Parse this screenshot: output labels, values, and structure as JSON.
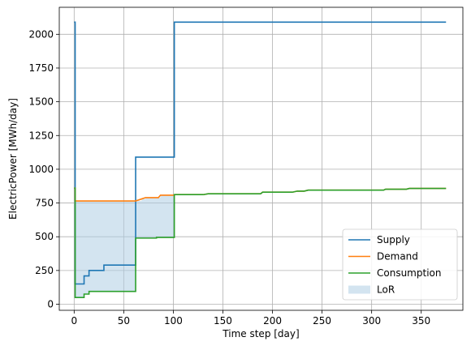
{
  "chart_data": {
    "type": "line",
    "xlabel": "Time step [day]",
    "ylabel": "ElectricPower [MWh/day]",
    "xlim": [
      -15,
      392
    ],
    "ylim": [
      -45,
      2200
    ],
    "xticks": [
      0,
      50,
      100,
      150,
      200,
      250,
      300,
      350
    ],
    "yticks": [
      0,
      250,
      500,
      750,
      1000,
      1250,
      1500,
      1750,
      2000
    ],
    "grid": true,
    "legend_position": "lower-right",
    "series": [
      {
        "name": "Supply",
        "color": "#1f77b4",
        "style": "step",
        "points": [
          [
            0,
            2090
          ],
          [
            1,
            2090
          ],
          [
            1,
            150
          ],
          [
            10,
            150
          ],
          [
            10,
            210
          ],
          [
            15,
            210
          ],
          [
            15,
            250
          ],
          [
            30,
            250
          ],
          [
            30,
            290
          ],
          [
            62,
            290
          ],
          [
            62,
            1090
          ],
          [
            101,
            1090
          ],
          [
            101,
            2090
          ],
          [
            375,
            2090
          ]
        ]
      },
      {
        "name": "Demand",
        "color": "#ff7f0e",
        "style": "step",
        "points": [
          [
            0,
            860
          ],
          [
            1,
            860
          ],
          [
            1,
            765
          ],
          [
            62,
            765
          ],
          [
            62,
            765
          ],
          [
            68,
            780
          ],
          [
            72,
            790
          ],
          [
            85,
            790
          ],
          [
            87,
            808
          ],
          [
            100,
            808
          ],
          [
            102,
            812
          ],
          [
            130,
            812
          ],
          [
            135,
            818
          ],
          [
            188,
            818
          ],
          [
            190,
            830
          ],
          [
            220,
            830
          ],
          [
            225,
            838
          ],
          [
            232,
            838
          ],
          [
            236,
            845
          ],
          [
            312,
            845
          ],
          [
            314,
            852
          ],
          [
            335,
            852
          ],
          [
            338,
            858
          ],
          [
            375,
            858
          ]
        ]
      },
      {
        "name": "Consumption",
        "color": "#2ca02c",
        "style": "step",
        "points": [
          [
            0,
            860
          ],
          [
            1,
            860
          ],
          [
            1,
            50
          ],
          [
            10,
            50
          ],
          [
            10,
            75
          ],
          [
            15,
            75
          ],
          [
            15,
            95
          ],
          [
            62,
            95
          ],
          [
            62,
            490
          ],
          [
            83,
            490
          ],
          [
            83,
            495
          ],
          [
            101,
            495
          ],
          [
            101,
            812
          ],
          [
            130,
            812
          ],
          [
            135,
            818
          ],
          [
            188,
            818
          ],
          [
            190,
            830
          ],
          [
            220,
            830
          ],
          [
            225,
            838
          ],
          [
            232,
            838
          ],
          [
            236,
            845
          ],
          [
            312,
            845
          ],
          [
            314,
            852
          ],
          [
            335,
            852
          ],
          [
            338,
            858
          ],
          [
            375,
            858
          ]
        ]
      }
    ],
    "fill": {
      "name": "LoR",
      "color": "#aecde3",
      "opacity": 0.55,
      "between": [
        "Consumption",
        "Demand"
      ],
      "x_range": [
        1,
        101
      ]
    }
  }
}
